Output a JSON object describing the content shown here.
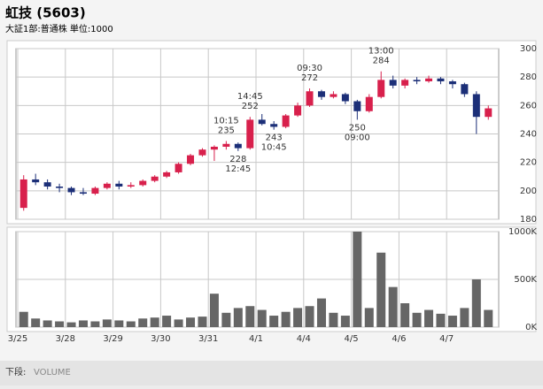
{
  "header": {
    "title": "虹技 (5603)",
    "subtitle": "大証1部:普通株 単位:1000"
  },
  "chart_data": [
    {
      "type": "candlestick",
      "x": [
        0.125,
        0.375,
        0.625,
        0.875,
        1.125,
        1.375,
        1.625,
        1.875,
        2.125,
        2.375,
        2.625,
        2.875,
        3.125,
        3.375,
        3.625,
        3.875,
        4.125,
        4.375,
        4.625,
        4.875,
        5.125,
        5.375,
        5.625,
        5.875,
        6.125,
        6.375,
        6.625,
        6.875,
        7.125,
        7.375,
        7.625,
        7.875,
        8.125,
        8.375,
        8.625,
        8.875,
        9.125,
        9.375,
        9.625,
        9.875
      ],
      "ohlc": [
        [
          188,
          211,
          186,
          208
        ],
        [
          208,
          212,
          204,
          206
        ],
        [
          206,
          208,
          201,
          203
        ],
        [
          203,
          205,
          199,
          202
        ],
        [
          202,
          203,
          197,
          199
        ],
        [
          199,
          202,
          197,
          198
        ],
        [
          198,
          203,
          197,
          202
        ],
        [
          202,
          206,
          201,
          205
        ],
        [
          205,
          207,
          201,
          203
        ],
        [
          203,
          206,
          202,
          204
        ],
        [
          204,
          208,
          203,
          207
        ],
        [
          207,
          211,
          206,
          210
        ],
        [
          210,
          214,
          209,
          213
        ],
        [
          213,
          220,
          212,
          219
        ],
        [
          219,
          226,
          218,
          225
        ],
        [
          225,
          230,
          224,
          229
        ],
        [
          229,
          232,
          221,
          231
        ],
        [
          231,
          235,
          229,
          233
        ],
        [
          233,
          234,
          228,
          230
        ],
        [
          230,
          252,
          229,
          250
        ],
        [
          250,
          254,
          246,
          247
        ],
        [
          247,
          249,
          243,
          245
        ],
        [
          245,
          254,
          244,
          253
        ],
        [
          253,
          262,
          252,
          260
        ],
        [
          260,
          272,
          259,
          270
        ],
        [
          270,
          271,
          264,
          266
        ],
        [
          266,
          270,
          265,
          268
        ],
        [
          268,
          269,
          261,
          263
        ],
        [
          263,
          264,
          250,
          256
        ],
        [
          256,
          268,
          255,
          266
        ],
        [
          266,
          284,
          265,
          278
        ],
        [
          278,
          281,
          272,
          274
        ],
        [
          274,
          279,
          272,
          278
        ],
        [
          278,
          280,
          275,
          277
        ],
        [
          277,
          281,
          276,
          279
        ],
        [
          279,
          280,
          275,
          277
        ],
        [
          277,
          278,
          272,
          275
        ],
        [
          275,
          276,
          266,
          268
        ],
        [
          268,
          270,
          240,
          252
        ],
        [
          252,
          260,
          250,
          258
        ]
      ],
      "up_color": "#d8204c",
      "down_color": "#1c2f78",
      "xlim": [
        0,
        10
      ],
      "xticks": [
        {
          "value": 0,
          "label": "3/25"
        },
        {
          "value": 1,
          "label": "3/28"
        },
        {
          "value": 2,
          "label": "3/29"
        },
        {
          "value": 3,
          "label": "3/30"
        },
        {
          "value": 4,
          "label": "3/31"
        },
        {
          "value": 5,
          "label": "4/1"
        },
        {
          "value": 6,
          "label": "4/4"
        },
        {
          "value": 7,
          "label": "4/5"
        },
        {
          "value": 8,
          "label": "4/6"
        },
        {
          "value": 9,
          "label": "4/7"
        }
      ],
      "ylim": [
        180,
        300
      ],
      "yticks": [
        180,
        200,
        220,
        240,
        260,
        280,
        300
      ],
      "grid": true,
      "high_labels": [
        {
          "time": "10:15",
          "value": 235,
          "x": 4.375
        },
        {
          "time": "14:45",
          "value": 252,
          "x": 4.875
        },
        {
          "time": "09:30",
          "value": 272,
          "x": 6.125
        },
        {
          "time": "13:00",
          "value": 284,
          "x": 7.625
        }
      ],
      "low_labels": [
        {
          "time": "12:45",
          "value": 228,
          "x": 4.625
        },
        {
          "time": "10:45",
          "value": 243,
          "x": 5.375
        },
        {
          "time": "09:00",
          "value": 250,
          "x": 7.125
        }
      ]
    },
    {
      "type": "bar",
      "x": [
        0.125,
        0.375,
        0.625,
        0.875,
        1.125,
        1.375,
        1.625,
        1.875,
        2.125,
        2.375,
        2.625,
        2.875,
        3.125,
        3.375,
        3.625,
        3.875,
        4.125,
        4.375,
        4.625,
        4.875,
        5.125,
        5.375,
        5.625,
        5.875,
        6.125,
        6.375,
        6.625,
        6.875,
        7.125,
        7.375,
        7.625,
        7.875,
        8.125,
        8.375,
        8.625,
        8.875,
        9.125,
        9.375,
        9.625,
        9.875
      ],
      "values": [
        160000,
        90000,
        70000,
        60000,
        50000,
        70000,
        60000,
        80000,
        70000,
        60000,
        90000,
        100000,
        120000,
        80000,
        100000,
        110000,
        350000,
        150000,
        200000,
        220000,
        180000,
        120000,
        160000,
        200000,
        220000,
        300000,
        150000,
        120000,
        1000000,
        200000,
        780000,
        420000,
        250000,
        150000,
        180000,
        140000,
        120000,
        200000,
        500000,
        180000
      ],
      "color": "#666666",
      "xlim": [
        0,
        10
      ],
      "ylim": [
        0,
        1000000
      ],
      "yticks": [
        {
          "value": 0,
          "label": "0K"
        },
        {
          "value": 500000,
          "label": "500K"
        },
        {
          "value": 1000000,
          "label": "1000K"
        }
      ],
      "grid": true
    }
  ],
  "footer": {
    "prefix": "下段:",
    "indicator": "VOLUME"
  }
}
